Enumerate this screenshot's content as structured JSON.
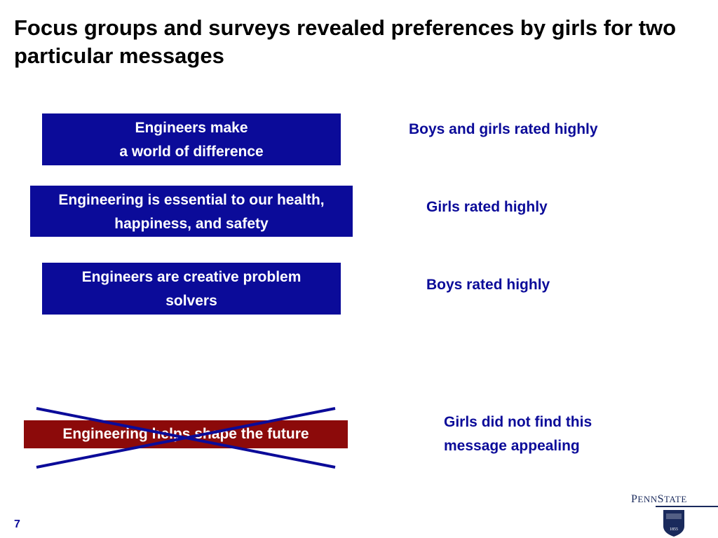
{
  "slide": {
    "title": "Focus groups and surveys revealed preferences by girls for two particular messages",
    "page_number": "7"
  },
  "messages": [
    {
      "lines": [
        "Engineers make",
        "a world of difference"
      ],
      "rating": "Boys and girls rated highly"
    },
    {
      "lines": [
        "Engineering is essential to our health,",
        "happiness, and safety"
      ],
      "rating": "Girls rated highly"
    },
    {
      "lines": [
        "Engineers are creative problem",
        "solvers"
      ],
      "rating": "Boys rated highly"
    }
  ],
  "rejected_message": {
    "text": "Engineering helps shape the future",
    "rating_lines": [
      "Girls did not find this",
      "message appealing"
    ]
  },
  "logo": {
    "word_prefix": "P",
    "word_small_1": "ENN",
    "word_mid": "S",
    "word_small_2": "TATE",
    "year": "1855"
  },
  "colors": {
    "accent_blue": "#0b0b99",
    "rejected_red": "#8c0a0a",
    "logo_navy": "#1a2a5c"
  }
}
